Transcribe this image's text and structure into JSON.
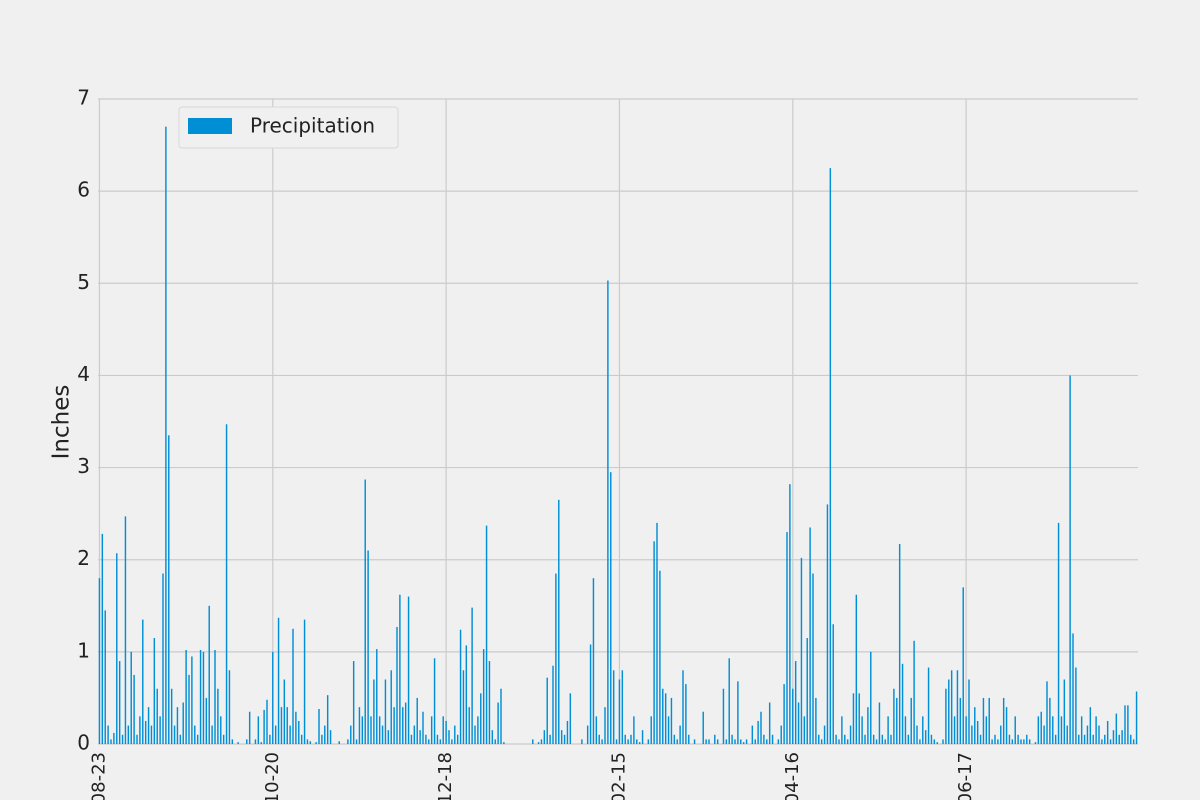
{
  "chart_data": {
    "type": "bar",
    "ylabel": "Inches",
    "legend": "upper left",
    "grid": true,
    "ylim": [
      0,
      7
    ],
    "yticks": [
      0,
      1,
      2,
      3,
      4,
      5,
      6,
      7
    ],
    "categories": [
      "08-23",
      null,
      null,
      null,
      null,
      null,
      null,
      null,
      null,
      null,
      null,
      null,
      null,
      null,
      null,
      null,
      null,
      null,
      null,
      null,
      null,
      null,
      null,
      null,
      null,
      null,
      null,
      null,
      null,
      null,
      null,
      null,
      null,
      null,
      null,
      null,
      null,
      null,
      null,
      null,
      null,
      null,
      null,
      null,
      null,
      null,
      null,
      null,
      null,
      null,
      null,
      null,
      null,
      null,
      null,
      null,
      null,
      null,
      null,
      null,
      "10-20",
      null,
      null,
      null,
      null,
      null,
      null,
      null,
      null,
      null,
      null,
      null,
      null,
      null,
      null,
      null,
      null,
      null,
      null,
      null,
      null,
      null,
      null,
      null,
      null,
      null,
      null,
      null,
      null,
      null,
      null,
      null,
      null,
      null,
      null,
      null,
      null,
      null,
      null,
      null,
      null,
      null,
      null,
      null,
      null,
      null,
      null,
      null,
      null,
      null,
      null,
      null,
      null,
      null,
      null,
      null,
      null,
      null,
      null,
      null,
      "12-18",
      null,
      null,
      null,
      null,
      null,
      null,
      null,
      null,
      null,
      null,
      null,
      null,
      null,
      null,
      null,
      null,
      null,
      null,
      null,
      null,
      null,
      null,
      null,
      null,
      null,
      null,
      null,
      null,
      null,
      null,
      null,
      null,
      null,
      null,
      null,
      null,
      null,
      null,
      null,
      null,
      null,
      null,
      null,
      null,
      null,
      null,
      null,
      null,
      null,
      null,
      null,
      null,
      null,
      null,
      null,
      null,
      null,
      null,
      null,
      "02-15",
      null,
      null,
      null,
      null,
      null,
      null,
      null,
      null,
      null,
      null,
      null,
      null,
      null,
      null,
      null,
      null,
      null,
      null,
      null,
      null,
      null,
      null,
      null,
      null,
      null,
      null,
      null,
      null,
      null,
      null,
      null,
      null,
      null,
      null,
      null,
      null,
      null,
      null,
      null,
      null,
      null,
      null,
      null,
      null,
      null,
      null,
      null,
      null,
      null,
      null,
      null,
      null,
      null,
      null,
      null,
      null,
      null,
      null,
      null,
      "04-16",
      null,
      null,
      null,
      null,
      null,
      null,
      null,
      null,
      null,
      null,
      null,
      null,
      null,
      null,
      null,
      null,
      null,
      null,
      null,
      null,
      null,
      null,
      null,
      null,
      null,
      null,
      null,
      null,
      null,
      null,
      null,
      null,
      null,
      null,
      null,
      null,
      null,
      null,
      null,
      null,
      null,
      null,
      null,
      null,
      null,
      null,
      null,
      null,
      null,
      null,
      null,
      null,
      null,
      null,
      null,
      null,
      null,
      null,
      null,
      "06-17",
      null,
      null,
      null,
      null,
      null,
      null,
      null,
      null,
      null,
      null,
      null,
      null,
      null,
      null,
      null,
      null,
      null,
      null,
      null,
      null,
      null,
      null,
      null,
      null,
      null,
      null,
      null,
      null,
      null,
      null,
      null,
      null,
      null,
      null,
      null,
      null,
      null,
      null,
      null,
      null,
      null,
      null,
      null,
      null,
      null,
      null,
      null,
      null,
      null,
      null,
      null,
      null,
      null,
      null,
      null,
      null,
      null,
      null,
      null
    ],
    "series": [
      {
        "name": "Precipitation",
        "color": "#008fd5",
        "values": [
          1.8,
          2.28,
          1.45,
          0.2,
          0.05,
          0.12,
          2.07,
          0.9,
          0.1,
          2.47,
          0.2,
          1.0,
          0.75,
          0.1,
          0.3,
          1.35,
          0.25,
          0.4,
          0.2,
          1.15,
          0.6,
          0.3,
          1.85,
          6.7,
          3.35,
          0.6,
          0.2,
          0.4,
          0.1,
          0.45,
          1.02,
          0.75,
          0.95,
          0.2,
          0.1,
          1.02,
          1.0,
          0.5,
          1.5,
          0.2,
          1.02,
          0.6,
          0.3,
          0.1,
          3.47,
          0.8,
          0.05,
          0,
          0.02,
          0,
          0,
          0.05,
          0.35,
          0,
          0.05,
          0.3,
          0.02,
          0.37,
          0.48,
          0.1,
          1.0,
          0.2,
          1.37,
          0.4,
          0.7,
          0.4,
          0.2,
          1.25,
          0.35,
          0.25,
          0.1,
          1.35,
          0.05,
          0.03,
          0,
          0.02,
          0.38,
          0.1,
          0.2,
          0.53,
          0.15,
          0,
          0,
          0.03,
          0,
          0,
          0.05,
          0.2,
          0.9,
          0.05,
          0.4,
          0.3,
          2.87,
          2.1,
          0.3,
          0.7,
          1.03,
          0.3,
          0.2,
          0.7,
          0.15,
          0.8,
          0.4,
          1.27,
          1.62,
          0.4,
          0.45,
          1.6,
          0.1,
          0.2,
          0.5,
          0.15,
          0.35,
          0.1,
          0.05,
          0.3,
          0.93,
          0.1,
          0.05,
          0.3,
          0.25,
          0.15,
          0.05,
          0.2,
          0.1,
          1.24,
          0.8,
          1.07,
          0.4,
          1.48,
          0.2,
          0.3,
          0.55,
          1.03,
          2.37,
          0.9,
          0.15,
          0.05,
          0.45,
          0.6,
          0.02,
          0,
          0,
          0,
          0,
          0,
          0,
          0,
          0,
          0,
          0.05,
          0,
          0.02,
          0.05,
          0.15,
          0.72,
          0.1,
          0.85,
          1.85,
          2.65,
          0.15,
          0.1,
          0.25,
          0.55,
          0,
          0,
          0,
          0.05,
          0,
          0.2,
          1.08,
          1.8,
          0.3,
          0.1,
          0.05,
          0.4,
          5.03,
          2.95,
          0.8,
          0.05,
          0.7,
          0.8,
          0.1,
          0.05,
          0.1,
          0.3,
          0.05,
          0.02,
          0.15,
          0,
          0.05,
          0.3,
          2.2,
          2.4,
          1.88,
          0.6,
          0.55,
          0.3,
          0.5,
          0.1,
          0.05,
          0.2,
          0.8,
          0.65,
          0.1,
          0,
          0.05,
          0,
          0,
          0.35,
          0.05,
          0.05,
          0,
          0.1,
          0.05,
          0,
          0.6,
          0.05,
          0.93,
          0.1,
          0.05,
          0.68,
          0.05,
          0.02,
          0.05,
          0,
          0.2,
          0.05,
          0.25,
          0.35,
          0.1,
          0.05,
          0.45,
          0.1,
          0,
          0.05,
          0.2,
          0.65,
          2.3,
          2.82,
          0.6,
          0.9,
          0.45,
          2.02,
          0.3,
          1.15,
          2.35,
          1.85,
          0.5,
          0.1,
          0.05,
          0.2,
          2.6,
          6.25,
          1.3,
          0.1,
          0.05,
          0.3,
          0.1,
          0.05,
          0.2,
          0.55,
          1.62,
          0.55,
          0.3,
          0.1,
          0.4,
          1.0,
          0.1,
          0.05,
          0.45,
          0.1,
          0.05,
          0.3,
          0.1,
          0.6,
          0.5,
          2.17,
          0.87,
          0.3,
          0.1,
          0.5,
          1.12,
          0.2,
          0.05,
          0.3,
          0.15,
          0.83,
          0.1,
          0.05,
          0.02,
          0,
          0.05,
          0.6,
          0.7,
          0.8,
          0.3,
          0.8,
          0.5,
          1.7,
          0.3,
          0.7,
          0.2,
          0.4,
          0.25,
          0.1,
          0.5,
          0.3,
          0.5,
          0.05,
          0.1,
          0.05,
          0.2,
          0.5,
          0.4,
          0.1,
          0.05,
          0.3,
          0.1,
          0.05,
          0.05,
          0.1,
          0.05,
          0,
          0.02,
          0.3,
          0.35,
          0.2,
          0.68,
          0.5,
          0.3,
          0.1,
          2.4,
          0.3,
          0.7,
          0.2,
          4.0,
          1.2,
          0.83,
          0.1,
          0.3,
          0.1,
          0.2,
          0.4,
          0.1,
          0.3,
          0.2,
          0.05,
          0.1,
          0.25,
          0.05,
          0.15,
          0.33,
          0.1,
          0.15,
          0.42,
          0.42,
          0.1,
          0.05,
          0.57
        ]
      }
    ]
  }
}
